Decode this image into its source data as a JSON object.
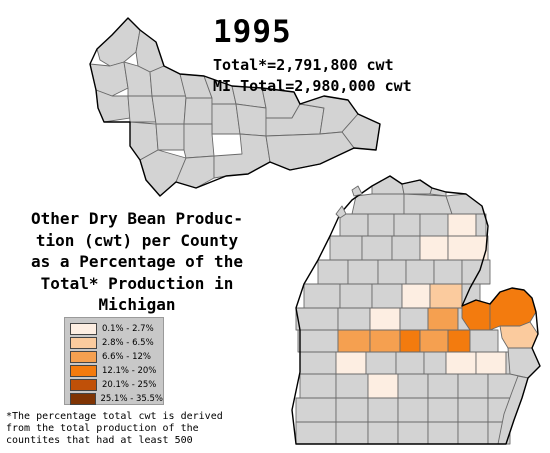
{
  "header": {
    "year": "1995",
    "total_line": "Total*=2,791,800 cwt",
    "mi_total_line": "MI Total=2,980,000 cwt"
  },
  "title_lines": [
    "Other Dry Bean Produc-",
    "tion (cwt) per County",
    "as a Percentage of the",
    "Total* Production in",
    "Michigan"
  ],
  "legend": {
    "items": [
      {
        "label": "0.1% - 2.7%",
        "color": "#fdeee2"
      },
      {
        "label": "2.8% - 6.5%",
        "color": "#fbcb9e"
      },
      {
        "label": "6.6% - 12%",
        "color": "#f5a050"
      },
      {
        "label": "12.1% - 20%",
        "color": "#f37b0e"
      },
      {
        "label": "20.1% - 25%",
        "color": "#c05008"
      },
      {
        "label": "25.1% - 35.5%",
        "color": "#7f3404"
      }
    ]
  },
  "no_data_color": "#d3d3d3",
  "footnote_lines": [
    "*The percentage total cwt is derived",
    "from the total production of the",
    "countites that had at least 500"
  ]
}
